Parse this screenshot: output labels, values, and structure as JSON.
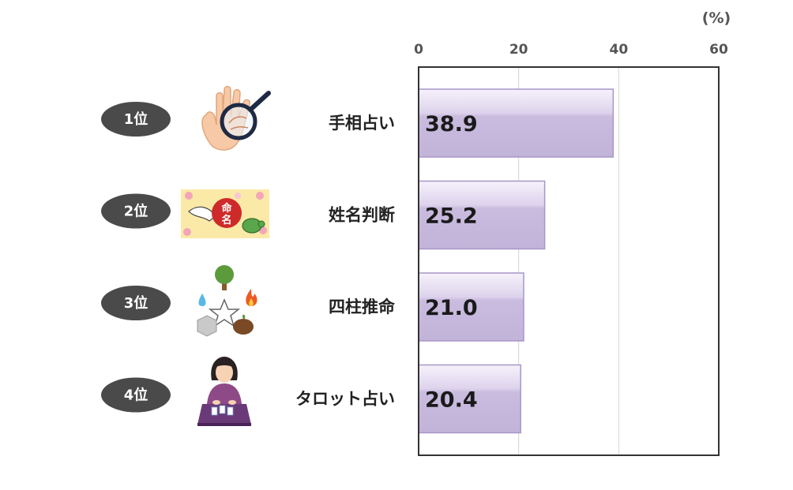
{
  "chart_data": {
    "type": "bar",
    "orientation": "horizontal",
    "unit_label": "(%)",
    "categories": [
      "手相占い",
      "姓名判断",
      "四柱推命",
      "タロット占い"
    ],
    "values": [
      38.9,
      25.2,
      21.0,
      20.4
    ],
    "value_labels": [
      "38.9",
      "25.2",
      "21.0",
      "20.4"
    ],
    "ranks": [
      "1位",
      "2位",
      "3位",
      "4位"
    ],
    "icons": [
      "palm-reading-icon",
      "name-divination-icon",
      "four-pillars-icon",
      "tarot-reader-icon"
    ],
    "xlim": [
      0,
      60
    ],
    "xticks": [
      "0",
      "20",
      "40",
      "60"
    ],
    "grid": true,
    "colors": {
      "bar_top": "#f3eef9",
      "bar_bottom": "#c3b4da",
      "bar_border": "#a896c8",
      "rank_badge": "#4a4a4a",
      "axis": "#333333"
    }
  }
}
